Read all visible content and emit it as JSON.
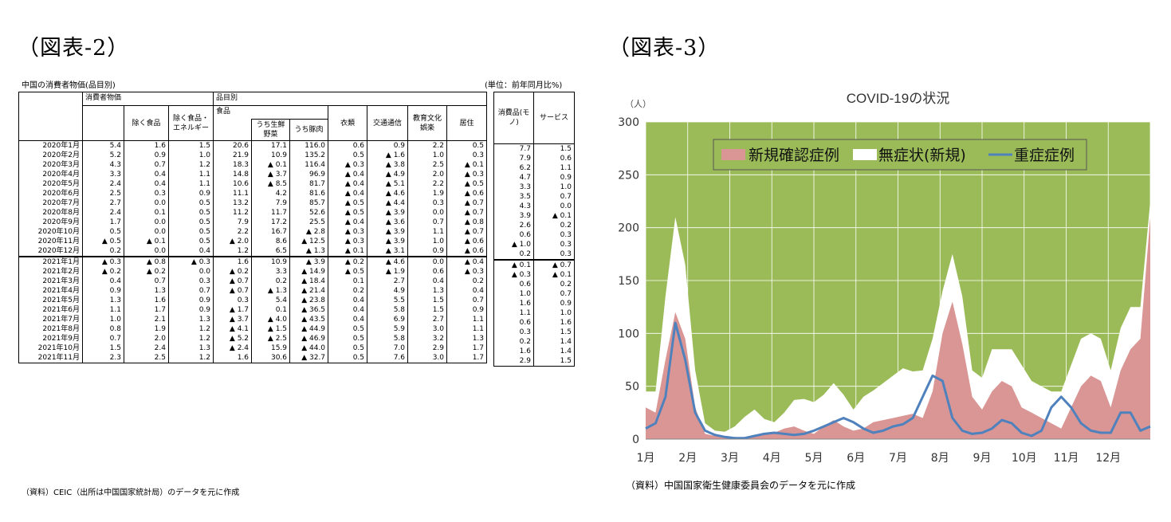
{
  "left_title": "（図表-2）",
  "right_title": "（図表-3）",
  "table": {
    "title": "中国の消費者物価(品目別)",
    "unit": "(単位：前年同月比%)",
    "group_cpi": "消費者物価",
    "group_items": "品目別",
    "col_food": "食品",
    "headers": [
      "除く食品",
      "除く食品・エネルギー",
      "うち生鮮野菜",
      "うち豚肉",
      "衣類",
      "交通通信",
      "教育文化娯楽",
      "居住"
    ],
    "side_headers": [
      "消費品(モノ)",
      "サービス"
    ],
    "rows": [
      [
        "2020年1月",
        "5.4",
        "1.6",
        "1.5",
        "20.6",
        "17.1",
        "116.0",
        "0.6",
        "0.9",
        "2.2",
        "0.5",
        "7.7",
        "1.5"
      ],
      [
        "2020年2月",
        "5.2",
        "0.9",
        "1.0",
        "21.9",
        "10.9",
        "135.2",
        "0.5",
        "▲ 1.6",
        "1.0",
        "0.3",
        "7.9",
        "0.6"
      ],
      [
        "2020年3月",
        "4.3",
        "0.7",
        "1.2",
        "18.3",
        "▲ 0.1",
        "116.4",
        "▲ 0.3",
        "▲ 3.8",
        "2.5",
        "▲ 0.1",
        "6.2",
        "1.1"
      ],
      [
        "2020年4月",
        "3.3",
        "0.4",
        "1.1",
        "14.8",
        "▲ 3.7",
        "96.9",
        "▲ 0.4",
        "▲ 4.9",
        "2.0",
        "▲ 0.3",
        "4.7",
        "0.9"
      ],
      [
        "2020年5月",
        "2.4",
        "0.4",
        "1.1",
        "10.6",
        "▲ 8.5",
        "81.7",
        "▲ 0.4",
        "▲ 5.1",
        "2.2",
        "▲ 0.5",
        "3.3",
        "1.0"
      ],
      [
        "2020年6月",
        "2.5",
        "0.3",
        "0.9",
        "11.1",
        "4.2",
        "81.6",
        "▲ 0.4",
        "▲ 4.6",
        "1.9",
        "▲ 0.6",
        "3.5",
        "0.7"
      ],
      [
        "2020年7月",
        "2.7",
        "0.0",
        "0.5",
        "13.2",
        "7.9",
        "85.7",
        "▲ 0.5",
        "▲ 4.4",
        "0.3",
        "▲ 0.7",
        "4.3",
        "0.0"
      ],
      [
        "2020年8月",
        "2.4",
        "0.1",
        "0.5",
        "11.2",
        "11.7",
        "52.6",
        "▲ 0.5",
        "▲ 3.9",
        "0.0",
        "▲ 0.7",
        "3.9",
        "▲ 0.1"
      ],
      [
        "2020年9月",
        "1.7",
        "0.0",
        "0.5",
        "7.9",
        "17.2",
        "25.5",
        "▲ 0.4",
        "▲ 3.6",
        "0.7",
        "▲ 0.8",
        "2.6",
        "0.2"
      ],
      [
        "2020年10月",
        "0.5",
        "0.0",
        "0.5",
        "2.2",
        "16.7",
        "▲ 2.8",
        "▲ 0.3",
        "▲ 3.9",
        "1.1",
        "▲ 0.7",
        "0.6",
        "0.3"
      ],
      [
        "2020年11月",
        "▲ 0.5",
        "▲ 0.1",
        "0.5",
        "▲ 2.0",
        "8.6",
        "▲ 12.5",
        "▲ 0.3",
        "▲ 3.9",
        "1.0",
        "▲ 0.6",
        "▲ 1.0",
        "0.3"
      ],
      [
        "2020年12月",
        "0.2",
        "0.0",
        "0.4",
        "1.2",
        "6.5",
        "▲ 1.3",
        "▲ 0.1",
        "▲ 3.1",
        "0.9",
        "▲ 0.6",
        "0.2",
        "0.3"
      ],
      [
        "2021年1月",
        "▲ 0.3",
        "▲ 0.8",
        "▲ 0.3",
        "1.6",
        "10.9",
        "▲ 3.9",
        "▲ 0.2",
        "▲ 4.6",
        "0.0",
        "▲ 0.4",
        "▲ 0.1",
        "▲ 0.7"
      ],
      [
        "2021年2月",
        "▲ 0.2",
        "▲ 0.2",
        "0.0",
        "▲ 0.2",
        "3.3",
        "▲ 14.9",
        "▲ 0.5",
        "▲ 1.9",
        "0.6",
        "▲ 0.3",
        "▲ 0.3",
        "▲ 0.1"
      ],
      [
        "2021年3月",
        "0.4",
        "0.7",
        "0.3",
        "▲ 0.7",
        "0.2",
        "▲ 18.4",
        "0.1",
        "2.7",
        "0.4",
        "0.2",
        "0.6",
        "0.2"
      ],
      [
        "2021年4月",
        "0.9",
        "1.3",
        "0.7",
        "▲ 0.7",
        "▲ 1.3",
        "▲ 21.4",
        "0.2",
        "4.9",
        "1.3",
        "0.4",
        "1.0",
        "0.7"
      ],
      [
        "2021年5月",
        "1.3",
        "1.6",
        "0.9",
        "0.3",
        "5.4",
        "▲ 23.8",
        "0.4",
        "5.5",
        "1.5",
        "0.7",
        "1.6",
        "0.9"
      ],
      [
        "2021年6月",
        "1.1",
        "1.7",
        "0.9",
        "▲ 1.7",
        "0.1",
        "▲ 36.5",
        "0.4",
        "5.8",
        "1.5",
        "0.9",
        "1.1",
        "1.0"
      ],
      [
        "2021年7月",
        "1.0",
        "2.1",
        "1.3",
        "▲ 3.7",
        "▲ 4.0",
        "▲ 43.5",
        "0.4",
        "6.9",
        "2.7",
        "1.1",
        "0.6",
        "1.6"
      ],
      [
        "2021年8月",
        "0.8",
        "1.9",
        "1.2",
        "▲ 4.1",
        "▲ 1.5",
        "▲ 44.9",
        "0.5",
        "5.9",
        "3.0",
        "1.1",
        "0.3",
        "1.5"
      ],
      [
        "2021年9月",
        "0.7",
        "2.0",
        "1.2",
        "▲ 5.2",
        "▲ 2.5",
        "▲ 46.9",
        "0.5",
        "5.8",
        "3.2",
        "1.3",
        "0.2",
        "1.4"
      ],
      [
        "2021年10月",
        "1.5",
        "2.4",
        "1.3",
        "▲ 2.4",
        "15.9",
        "▲ 44.0",
        "0.5",
        "7.0",
        "2.9",
        "1.7",
        "1.6",
        "1.4"
      ],
      [
        "2021年11月",
        "2.3",
        "2.5",
        "1.2",
        "1.6",
        "30.6",
        "▲ 32.7",
        "0.5",
        "7.6",
        "3.0",
        "1.7",
        "2.9",
        "1.5"
      ]
    ],
    "source": "（資料）CEIC（出所は中国国家統計局）のデータを元に作成"
  },
  "chart_data": {
    "type": "area",
    "title": "COVID-19の状況",
    "ylabel": "（人）",
    "ylim": [
      0,
      300
    ],
    "yticks": [
      "0",
      "50",
      "100",
      "150",
      "200",
      "250",
      "300"
    ],
    "xticks": [
      "1月",
      "2月",
      "3月",
      "4月",
      "5月",
      "6月",
      "7月",
      "8月",
      "9月",
      "10月",
      "11月",
      "12月"
    ],
    "background_color": "#9bbb59",
    "grid": true,
    "legend_position": "top-center",
    "series": [
      {
        "name": "新規確認症例",
        "color": "#d99694",
        "kind": "area",
        "values": [
          30,
          25,
          75,
          120,
          95,
          30,
          5,
          3,
          2,
          2,
          1,
          3,
          4,
          6,
          10,
          12,
          8,
          5,
          12,
          18,
          12,
          8,
          10,
          16,
          18,
          20,
          22,
          24,
          20,
          45,
          100,
          130,
          90,
          40,
          28,
          45,
          55,
          50,
          30,
          25,
          20,
          15,
          10,
          30,
          50,
          60,
          55,
          30,
          65,
          85,
          95,
          210
        ]
      },
      {
        "name": "無症状(新規)",
        "color": "#ffffff",
        "kind": "area",
        "values": [
          15,
          20,
          60,
          90,
          70,
          35,
          10,
          5,
          5,
          10,
          20,
          25,
          15,
          10,
          15,
          25,
          30,
          30,
          30,
          35,
          30,
          20,
          30,
          30,
          35,
          40,
          45,
          40,
          45,
          50,
          40,
          45,
          45,
          25,
          30,
          40,
          30,
          35,
          40,
          30,
          30,
          30,
          35,
          40,
          45,
          40,
          40,
          35,
          40,
          40,
          30,
          15
        ]
      },
      {
        "name": "重症症例",
        "color": "#4f81bd",
        "kind": "line",
        "values": [
          10,
          15,
          40,
          110,
          75,
          25,
          8,
          4,
          2,
          1,
          1,
          3,
          5,
          6,
          5,
          4,
          5,
          8,
          12,
          16,
          20,
          16,
          10,
          6,
          8,
          12,
          14,
          20,
          40,
          60,
          55,
          20,
          8,
          5,
          6,
          10,
          18,
          15,
          6,
          3,
          8,
          30,
          40,
          30,
          15,
          8,
          6,
          6,
          25,
          25,
          8,
          12
        ]
      }
    ]
  },
  "chart_source": "（資料）中国国家衛生健康委員会のデータを元に作成"
}
